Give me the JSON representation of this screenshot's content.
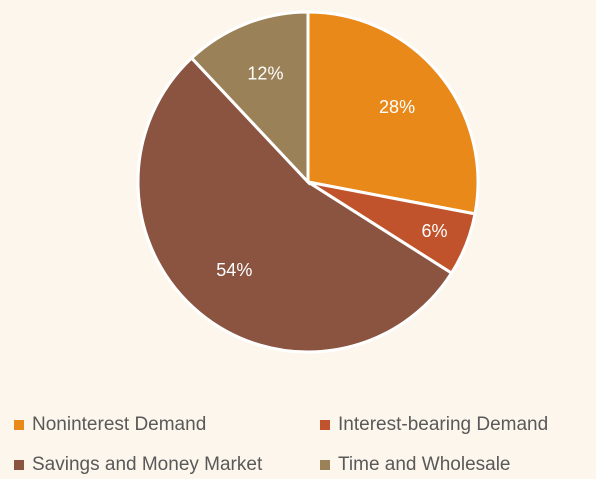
{
  "chart_data": {
    "type": "pie",
    "categories": [
      "Noninterest Demand",
      "Interest-bearing Demand",
      "Savings and Money Market",
      "Time and Wholesale"
    ],
    "values": [
      28,
      6,
      54,
      12
    ],
    "value_labels": [
      "28%",
      "6%",
      "54%",
      "12%"
    ],
    "colors": [
      "#e8891a",
      "#c0532b",
      "#8a5441",
      "#9b8158"
    ],
    "legend": "bottom"
  }
}
